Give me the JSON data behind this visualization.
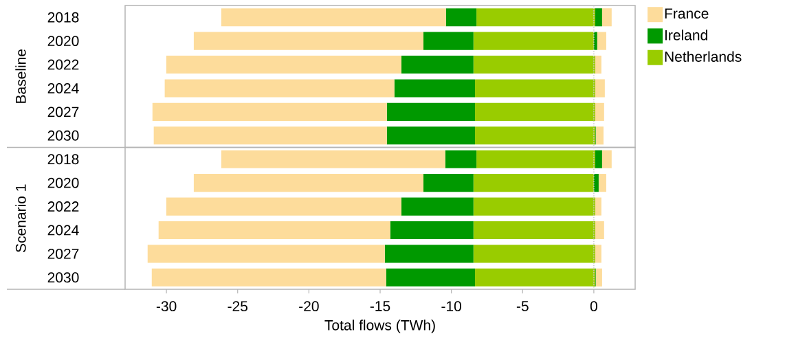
{
  "chart_data": [
    {
      "type": "bar",
      "orientation": "horizontal",
      "stacked": true,
      "ylabel": "Baseline",
      "tick_labels": "y",
      "categories": [
        "2018",
        "2020",
        "2022",
        "2024",
        "2027",
        "2030"
      ],
      "series": [
        {
          "name": "Netherlands",
          "color": "#99cc00",
          "values": [
            -8.24,
            -8.45,
            -8.45,
            -8.34,
            -8.34,
            -8.34
          ]
        },
        {
          "name": "Ireland",
          "color": "#009900",
          "values": [
            -2.14,
            -3.51,
            -5.06,
            -5.66,
            -6.19,
            -6.19
          ]
        },
        {
          "name": "France",
          "color": "#fddc9b",
          "values": [
            -15.77,
            -16.12,
            -16.5,
            -16.12,
            -16.45,
            -16.36
          ]
        },
        {
          "color": "#99cc00",
          "values": [
            0.1,
            0,
            0.1,
            0.1,
            0.1,
            0.1
          ]
        },
        {
          "color": "#009900",
          "values": [
            0.48,
            0.24,
            0,
            0,
            0,
            0.04
          ]
        },
        {
          "color": "#fddc9b",
          "values": [
            0.67,
            0.63,
            0.43,
            0.67,
            0.62,
            0.54
          ]
        }
      ],
      "xlim": [
        -32.9,
        2.9
      ],
      "xticks": [
        -30,
        -25,
        -20,
        -15,
        -10,
        -5,
        0
      ],
      "ref_lines": [
        {
          "axis": "x",
          "value": 0,
          "color": "#c8c8c8",
          "line_style": "dotted"
        }
      ],
      "legend": "top right"
    },
    {
      "type": "bar",
      "orientation": "horizontal",
      "stacked": true,
      "ylabel": "Scenario 1",
      "categories": [
        "2018",
        "2020",
        "2022",
        "2024",
        "2027",
        "2030"
      ],
      "series": [
        {
          "color": "#99cc00",
          "values": [
            -8.24,
            -8.45,
            -8.45,
            -8.45,
            -8.45,
            -8.34
          ]
        },
        {
          "color": "#009900",
          "values": [
            -2.19,
            -3.51,
            -5.06,
            -5.84,
            -6.22,
            -6.24
          ]
        },
        {
          "color": "#fddc9b",
          "values": [
            -15.72,
            -16.12,
            -16.5,
            -16.26,
            -16.65,
            -16.45
          ]
        },
        {
          "color": "#99cc00",
          "values": [
            0.1,
            0,
            0.1,
            0.1,
            0.1,
            0.1
          ]
        },
        {
          "color": "#009900",
          "values": [
            0.48,
            0.34,
            0,
            0,
            0,
            0.04
          ]
        },
        {
          "color": "#fddc9b",
          "values": [
            0.67,
            0.53,
            0.43,
            0.62,
            0.43,
            0.44
          ]
        }
      ],
      "xlabel": "Total flows (TWh)",
      "xlim": [
        -32.9,
        2.9
      ],
      "xticks": [
        -30,
        -25,
        -20,
        -15,
        -10,
        -5,
        0
      ],
      "ref_lines": [
        {
          "axis": "x",
          "value": 0,
          "color": "#c8c8c8",
          "line_style": "dotted"
        }
      ]
    }
  ]
}
